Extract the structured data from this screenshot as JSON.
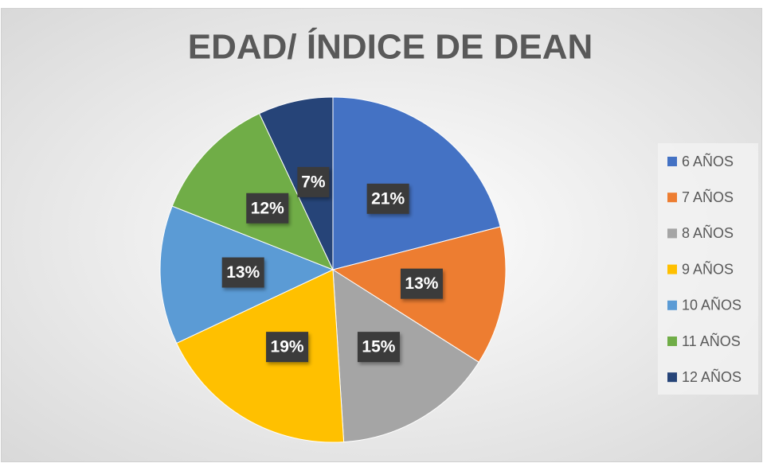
{
  "chart_data": {
    "type": "pie",
    "title": "EDAD/ ÍNDICE DE DEAN",
    "categories": [
      "6 AÑOS",
      "7 AÑOS",
      "8 AÑOS",
      "9 AÑOS",
      "10 AÑOS",
      "11 AÑOS",
      "12 AÑOS"
    ],
    "values": [
      21,
      13,
      15,
      19,
      13,
      12,
      7
    ],
    "value_labels": [
      "21%",
      "13%",
      "15%",
      "19%",
      "13%",
      "12%",
      "7%"
    ],
    "colors": [
      "#4472c4",
      "#ed7d31",
      "#a5a5a5",
      "#ffc000",
      "#5b9bd5",
      "#70ad47",
      "#264478"
    ],
    "legend": "right"
  }
}
